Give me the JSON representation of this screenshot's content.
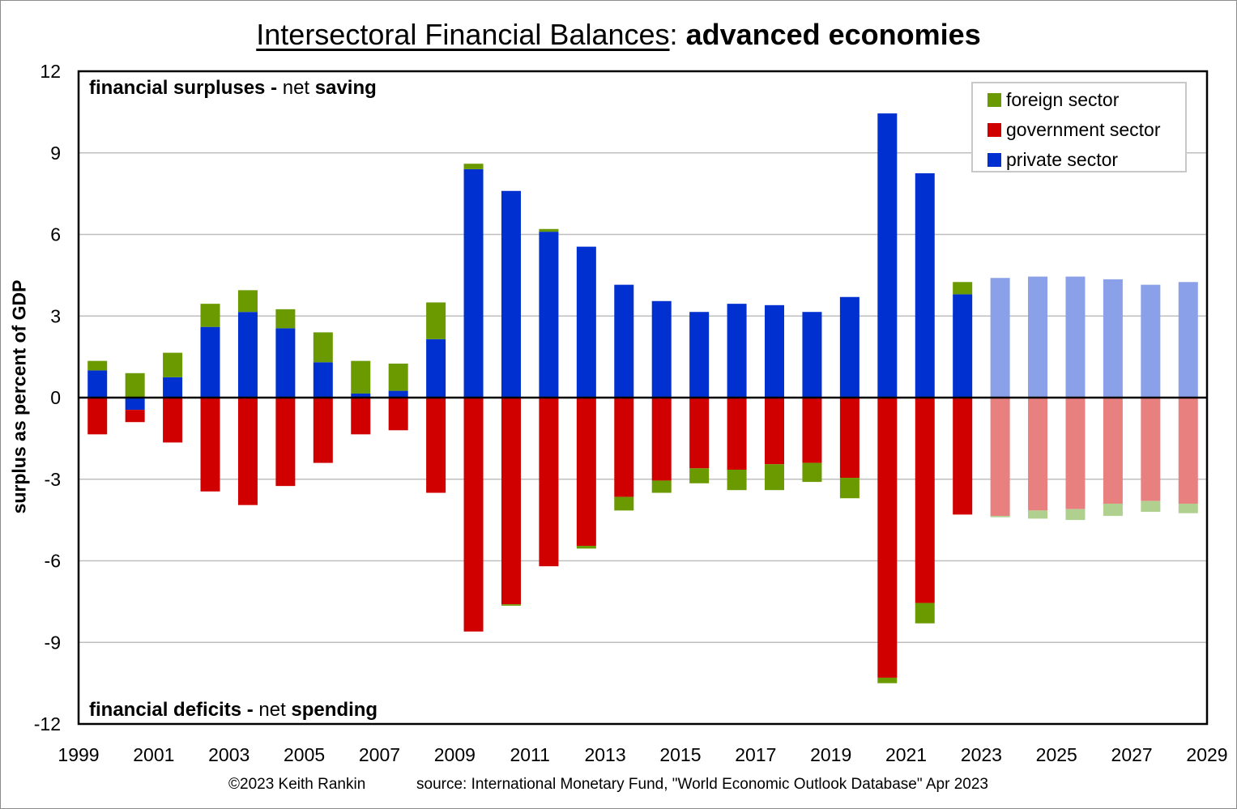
{
  "title": {
    "main": "Intersectoral Financial Balances",
    "separator": ":",
    "sub": "advanced economies"
  },
  "ylabel": "surplus as percent of GDP",
  "annotations": {
    "top": {
      "bold1": "financial surpluses -",
      "plain": "net",
      "bold2": "saving"
    },
    "bottom": {
      "bold1": "financial deficits -",
      "plain": "net",
      "bold2": "spending"
    }
  },
  "footer": {
    "copyright": "©2023 Keith Rankin",
    "source": "source:  International Monetary Fund, \"World Economic Outlook Database\" Apr 2023"
  },
  "legend": [
    {
      "name": "foreign sector",
      "color": "#6a9a00"
    },
    {
      "name": "government sector",
      "color": "#d00000"
    },
    {
      "name": "private sector",
      "color": "#0030d0"
    }
  ],
  "chart_data": {
    "type": "bar",
    "stacked": true,
    "title": "Intersectoral Financial Balances: advanced economies",
    "ylabel": "surplus as percent of GDP",
    "ylim": [
      -12,
      12
    ],
    "yticks": [
      -12,
      -9,
      -6,
      -3,
      0,
      3,
      6,
      9,
      12
    ],
    "xticks": [
      "1999",
      "2001",
      "2003",
      "2005",
      "2007",
      "2009",
      "2011",
      "2013",
      "2015",
      "2017",
      "2019",
      "2021",
      "2023",
      "2025",
      "2027",
      "2029"
    ],
    "grid": true,
    "legend_position": "top-right",
    "projection_from": 2023,
    "years": [
      1999,
      2000,
      2001,
      2002,
      2003,
      2004,
      2005,
      2006,
      2007,
      2008,
      2009,
      2010,
      2011,
      2012,
      2013,
      2014,
      2015,
      2016,
      2017,
      2018,
      2019,
      2020,
      2021,
      2022,
      2023,
      2024,
      2025,
      2026,
      2027,
      2028
    ],
    "series": [
      {
        "name": "private sector",
        "color": "#0030d0",
        "projection_color": "#8aa0e8",
        "values": [
          1.0,
          -0.45,
          0.75,
          2.6,
          3.15,
          2.55,
          1.3,
          0.15,
          0.25,
          2.15,
          8.4,
          7.6,
          6.1,
          5.55,
          4.15,
          3.55,
          3.15,
          3.45,
          3.4,
          3.15,
          3.7,
          10.45,
          8.25,
          3.8,
          4.4,
          4.45,
          4.45,
          4.35,
          4.15,
          4.25
        ]
      },
      {
        "name": "government sector",
        "color": "#d00000",
        "projection_color": "#e88080",
        "values": [
          -1.35,
          -0.45,
          -1.65,
          -3.45,
          -3.95,
          -3.25,
          -2.4,
          -1.35,
          -1.2,
          -3.5,
          -8.6,
          -7.6,
          -6.2,
          -5.45,
          -3.65,
          -3.05,
          -2.6,
          -2.65,
          -2.45,
          -2.4,
          -2.95,
          -10.3,
          -7.55,
          -4.3,
          -4.35,
          -4.15,
          -4.1,
          -3.9,
          -3.8,
          -3.9
        ]
      },
      {
        "name": "foreign sector",
        "color": "#6a9a00",
        "projection_color": "#b0d090",
        "values": [
          0.35,
          0.9,
          0.9,
          0.85,
          0.8,
          0.7,
          1.1,
          1.2,
          1.0,
          1.35,
          0.2,
          -0.05,
          0.1,
          -0.1,
          -0.5,
          -0.45,
          -0.55,
          -0.75,
          -0.95,
          -0.7,
          -0.75,
          -0.2,
          -0.75,
          0.45,
          -0.05,
          -0.3,
          -0.4,
          -0.45,
          -0.4,
          -0.35
        ]
      }
    ]
  }
}
